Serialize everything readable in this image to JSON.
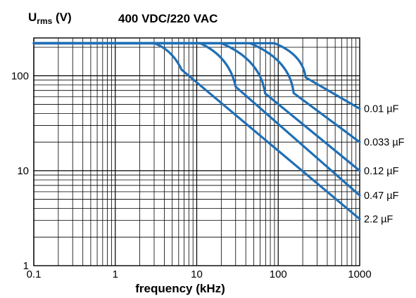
{
  "chart_data": {
    "type": "line",
    "title": "400 VDC/220 VAC",
    "ylabel_main": "U",
    "ylabel_sub": "rms",
    "ylabel_unit": " (V)",
    "xlabel": "frequency (kHz)",
    "x_scale": "log",
    "y_scale": "log",
    "xlim": [
      0.1,
      1000
    ],
    "ylim": [
      1,
      250
    ],
    "x_ticks": [
      {
        "value": 0.1,
        "label": "0.1"
      },
      {
        "value": 1,
        "label": "1"
      },
      {
        "value": 10,
        "label": "10"
      },
      {
        "value": 100,
        "label": "100"
      },
      {
        "value": 1000,
        "label": "1000"
      }
    ],
    "y_ticks": [
      {
        "value": 1,
        "label": "1"
      },
      {
        "value": 10,
        "label": "10"
      },
      {
        "value": 100,
        "label": "100"
      }
    ],
    "grid": true,
    "line_color": "#1f6fb5",
    "series": [
      {
        "name": "0.01 µF",
        "x": [
          0.1,
          90,
          200,
          1000
        ],
        "y": [
          220,
          220,
          100,
          45
        ]
      },
      {
        "name": "0.033 µF",
        "x": [
          0.1,
          45,
          140,
          1000
        ],
        "y": [
          220,
          220,
          70,
          20
        ]
      },
      {
        "name": "0.12 µF",
        "x": [
          0.1,
          20,
          60,
          1000
        ],
        "y": [
          220,
          220,
          72,
          10
        ]
      },
      {
        "name": "0.47 µF",
        "x": [
          0.1,
          11,
          25,
          1000
        ],
        "y": [
          220,
          220,
          88,
          5.5
        ]
      },
      {
        "name": "2.2 µF",
        "x": [
          0.1,
          3,
          5,
          1000
        ],
        "y": [
          220,
          220,
          140,
          3.1
        ]
      }
    ]
  }
}
